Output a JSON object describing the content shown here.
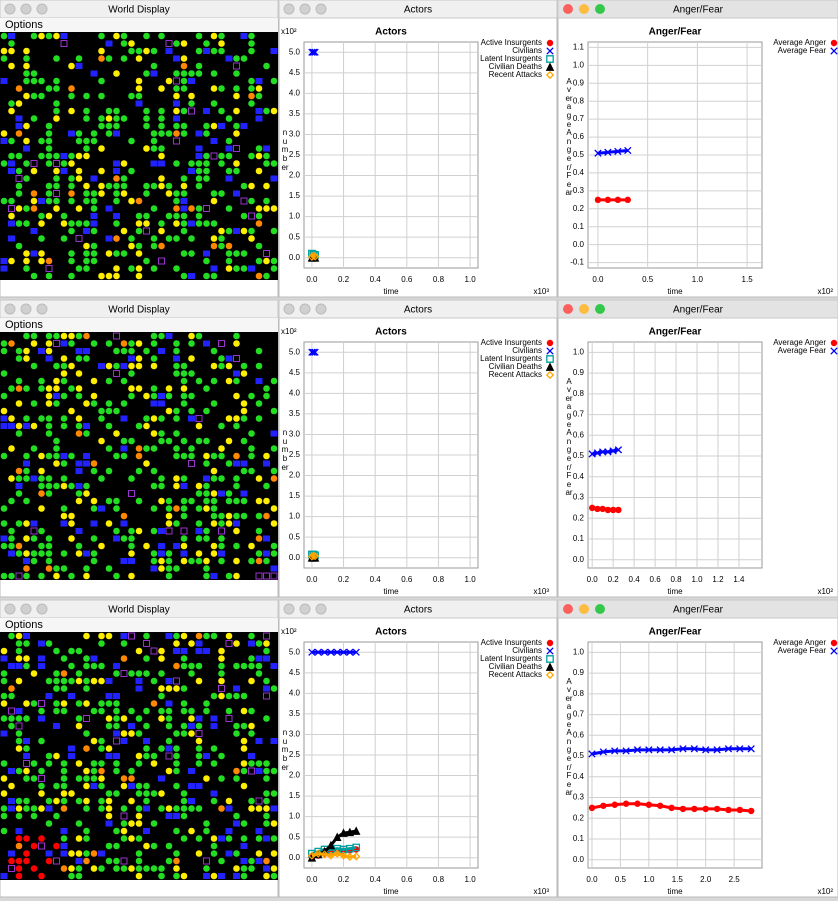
{
  "rows": [
    {
      "world_title": "World Display",
      "menu": "Options",
      "actors_title": "Actors",
      "anger_title": "Anger/Fear"
    },
    {
      "world_title": "World Display",
      "menu": "Options",
      "actors_title": "Actors",
      "anger_title": "Anger/Fear"
    },
    {
      "world_title": "World Display",
      "menu": "Options",
      "actors_title": "Actors",
      "anger_title": "Anger/Fear"
    }
  ],
  "chart_data": [
    {
      "type": "scatter",
      "title": "Actors",
      "xlabel": "time",
      "ylabel": "number",
      "x_exponent": "x10³",
      "y_exponent": "x10²",
      "grid": true,
      "xlim": [
        -0.05,
        1.05
      ],
      "ylim": [
        -0.25,
        5.25
      ],
      "xticks": [
        {
          "value": 0,
          "label": "0.0"
        },
        0.2,
        0.4,
        0.6,
        0.8,
        {
          "value": 1,
          "label": "1.0"
        }
      ],
      "yticks": [
        {
          "value": 0,
          "label": "0.0"
        },
        0.5,
        {
          "value": 1,
          "label": "1.0"
        },
        1.5,
        {
          "value": 2,
          "label": "2.0"
        },
        2.5,
        {
          "value": 3,
          "label": "3.0"
        },
        3.5,
        {
          "value": 4,
          "label": "4.0"
        },
        4.5,
        {
          "value": 5,
          "label": "5.0"
        }
      ],
      "series": [
        {
          "name": "Active Insurgents",
          "color": "#ff0000",
          "marker": "circle",
          "x": [
            0,
            0.01,
            0.02
          ],
          "values": [
            0,
            0,
            0
          ]
        },
        {
          "name": "Civilians",
          "color": "#0000ff",
          "marker": "x",
          "x": [
            0,
            0.01,
            0.02
          ],
          "values": [
            5,
            5,
            5
          ]
        },
        {
          "name": "Latent Insurgents",
          "color": "#00a0a0",
          "marker": "square",
          "x": [
            0,
            0.01,
            0.02
          ],
          "values": [
            0.1,
            0.08,
            0.07
          ]
        },
        {
          "name": "Civilian Deaths",
          "color": "#000000",
          "marker": "triangle",
          "x": [
            0,
            0.01,
            0.02
          ],
          "values": [
            0,
            0,
            0
          ]
        },
        {
          "name": "Recent Attacks",
          "color": "#ffa500",
          "marker": "diamond",
          "x": [
            0,
            0.01,
            0.02
          ],
          "values": [
            0.02,
            0.05,
            0.03
          ]
        }
      ]
    },
    {
      "type": "scatter",
      "title": "Anger/Fear",
      "xlabel": "time",
      "ylabel": "Average Anger/Fear",
      "x_exponent": "x10²",
      "grid": true,
      "xlim": [
        -0.1,
        1.65
      ],
      "ylim": [
        -0.13,
        1.13
      ],
      "xticks": [
        {
          "value": 0,
          "label": "0.0"
        },
        0.5,
        {
          "value": 1,
          "label": "1.0"
        },
        1.5
      ],
      "yticks": [
        -0.1,
        {
          "value": 0,
          "label": "0.0"
        },
        0.1,
        0.2,
        0.3,
        0.4,
        0.5,
        0.6,
        0.7,
        0.8,
        0.9,
        {
          "value": 1,
          "label": "1.0"
        },
        1.1
      ],
      "series": [
        {
          "name": "Average Anger",
          "color": "#ff0000",
          "marker": "circle",
          "x": [
            0,
            0.1,
            0.2,
            0.3
          ],
          "values": [
            0.25,
            0.25,
            0.25,
            0.25
          ]
        },
        {
          "name": "Average Fear",
          "color": "#0000ff",
          "marker": "x",
          "x": [
            0,
            0.1,
            0.2,
            0.3
          ],
          "values": [
            0.51,
            0.515,
            0.52,
            0.525
          ]
        }
      ]
    },
    {
      "type": "scatter",
      "title": "Actors",
      "xlabel": "time",
      "ylabel": "number",
      "x_exponent": "x10³",
      "y_exponent": "x10²",
      "grid": true,
      "xlim": [
        -0.05,
        1.05
      ],
      "ylim": [
        -0.25,
        5.25
      ],
      "xticks": [
        {
          "value": 0,
          "label": "0.0"
        },
        0.2,
        0.4,
        0.6,
        0.8,
        {
          "value": 1,
          "label": "1.0"
        }
      ],
      "yticks": [
        {
          "value": 0,
          "label": "0.0"
        },
        0.5,
        {
          "value": 1,
          "label": "1.0"
        },
        1.5,
        {
          "value": 2,
          "label": "2.0"
        },
        2.5,
        {
          "value": 3,
          "label": "3.0"
        },
        3.5,
        {
          "value": 4,
          "label": "4.0"
        },
        4.5,
        {
          "value": 5,
          "label": "5.0"
        }
      ],
      "series": [
        {
          "name": "Active Insurgents",
          "color": "#ff0000",
          "marker": "circle",
          "x": [
            0,
            0.01,
            0.02
          ],
          "values": [
            -0.02,
            0,
            0
          ]
        },
        {
          "name": "Civilians",
          "color": "#0000ff",
          "marker": "x",
          "x": [
            0,
            0.01,
            0.02
          ],
          "values": [
            5,
            5,
            5
          ]
        },
        {
          "name": "Latent Insurgents",
          "color": "#00a0a0",
          "marker": "square",
          "x": [
            0,
            0.01,
            0.02
          ],
          "values": [
            0.08,
            0.08,
            0.06
          ]
        },
        {
          "name": "Civilian Deaths",
          "color": "#000000",
          "marker": "triangle",
          "x": [
            0,
            0.01,
            0.02
          ],
          "values": [
            0,
            0,
            0
          ]
        },
        {
          "name": "Recent Attacks",
          "color": "#ffa500",
          "marker": "diamond",
          "x": [
            0,
            0.01,
            0.02
          ],
          "values": [
            0.03,
            0.05,
            0.04
          ]
        }
      ]
    },
    {
      "type": "scatter",
      "title": "Anger/Fear",
      "xlabel": "time",
      "ylabel": "Average Anger/Fear",
      "x_exponent": "x10²",
      "grid": true,
      "xlim": [
        -0.04,
        1.62
      ],
      "ylim": [
        -0.04,
        1.05
      ],
      "xticks": [
        {
          "value": 0,
          "label": "0.0"
        },
        0.2,
        0.4,
        0.6,
        0.8,
        {
          "value": 1,
          "label": "1.0"
        },
        1.2,
        1.4
      ],
      "yticks": [
        {
          "value": 0,
          "label": "0.0"
        },
        0.1,
        0.2,
        0.3,
        0.4,
        0.5,
        0.6,
        0.7,
        0.8,
        0.9,
        {
          "value": 1,
          "label": "1.0"
        }
      ],
      "series": [
        {
          "name": "Average Anger",
          "color": "#ff0000",
          "marker": "circle",
          "x": [
            0,
            0.05,
            0.1,
            0.15,
            0.2,
            0.25
          ],
          "values": [
            0.25,
            0.245,
            0.245,
            0.24,
            0.24,
            0.24
          ]
        },
        {
          "name": "Average Fear",
          "color": "#0000ff",
          "marker": "x",
          "x": [
            0,
            0.05,
            0.1,
            0.15,
            0.2,
            0.25
          ],
          "values": [
            0.51,
            0.515,
            0.52,
            0.52,
            0.525,
            0.53
          ]
        }
      ]
    },
    {
      "type": "scatter",
      "title": "Actors",
      "xlabel": "time",
      "ylabel": "number",
      "x_exponent": "x10³",
      "y_exponent": "x10²",
      "grid": true,
      "xlim": [
        -0.05,
        1.05
      ],
      "ylim": [
        -0.25,
        5.25
      ],
      "xticks": [
        {
          "value": 0,
          "label": "0.0"
        },
        0.2,
        0.4,
        0.6,
        0.8,
        {
          "value": 1,
          "label": "1.0"
        }
      ],
      "yticks": [
        {
          "value": 0,
          "label": "0.0"
        },
        0.5,
        {
          "value": 1,
          "label": "1.0"
        },
        1.5,
        {
          "value": 2,
          "label": "2.0"
        },
        2.5,
        {
          "value": 3,
          "label": "3.0"
        },
        3.5,
        {
          "value": 4,
          "label": "4.0"
        },
        4.5,
        {
          "value": 5,
          "label": "5.0"
        }
      ],
      "series": [
        {
          "name": "Active Insurgents",
          "color": "#ff0000",
          "marker": "circle",
          "x": [
            0,
            0.04,
            0.08,
            0.12,
            0.16,
            0.2,
            0.24,
            0.28
          ],
          "values": [
            0,
            0.05,
            0.1,
            0.12,
            0.15,
            0.17,
            0.18,
            0.2
          ]
        },
        {
          "name": "Civilians",
          "color": "#0000ff",
          "marker": "x",
          "x": [
            0,
            0.04,
            0.08,
            0.12,
            0.16,
            0.2,
            0.24,
            0.28
          ],
          "values": [
            5,
            5,
            5,
            5,
            5,
            5,
            5,
            5
          ]
        },
        {
          "name": "Latent Insurgents",
          "color": "#00a0a0",
          "marker": "square",
          "x": [
            0,
            0.04,
            0.08,
            0.12,
            0.16,
            0.2,
            0.24,
            0.28
          ],
          "values": [
            0.1,
            0.15,
            0.2,
            0.2,
            0.22,
            0.2,
            0.22,
            0.25
          ]
        },
        {
          "name": "Civilian Deaths",
          "color": "#000000",
          "marker": "triangle",
          "x": [
            0,
            0.04,
            0.08,
            0.12,
            0.16,
            0.2,
            0.24,
            0.28
          ],
          "values": [
            0,
            0.08,
            0.15,
            0.3,
            0.5,
            0.6,
            0.62,
            0.65
          ]
        },
        {
          "name": "Recent Attacks",
          "color": "#ffa500",
          "marker": "diamond",
          "x": [
            0,
            0.04,
            0.08,
            0.12,
            0.16,
            0.2,
            0.24,
            0.28
          ],
          "values": [
            0.05,
            0.1,
            0.08,
            0.05,
            0.1,
            0.05,
            0.02,
            0.03
          ]
        }
      ]
    },
    {
      "type": "scatter",
      "title": "Anger/Fear",
      "xlabel": "time",
      "ylabel": "Average Anger/Fear",
      "x_exponent": "x10²",
      "grid": true,
      "xlim": [
        -0.07,
        2.99
      ],
      "ylim": [
        -0.04,
        1.05
      ],
      "xticks": [
        {
          "value": 0,
          "label": "0.0"
        },
        0.5,
        {
          "value": 1,
          "label": "1.0"
        },
        1.5,
        {
          "value": 2,
          "label": "2.0"
        },
        2.5
      ],
      "yticks": [
        {
          "value": 0,
          "label": "0.0"
        },
        0.1,
        0.2,
        0.3,
        0.4,
        0.5,
        0.6,
        0.7,
        0.8,
        0.9,
        {
          "value": 1,
          "label": "1.0"
        }
      ],
      "series": [
        {
          "name": "Average Anger",
          "color": "#ff0000",
          "marker": "circle",
          "x": [
            0,
            0.2,
            0.4,
            0.6,
            0.8,
            1.0,
            1.2,
            1.4,
            1.6,
            1.8,
            2.0,
            2.2,
            2.4,
            2.6,
            2.8
          ],
          "values": [
            0.25,
            0.26,
            0.265,
            0.27,
            0.27,
            0.265,
            0.26,
            0.25,
            0.245,
            0.245,
            0.245,
            0.245,
            0.24,
            0.24,
            0.235
          ]
        },
        {
          "name": "Average Fear",
          "color": "#0000ff",
          "marker": "x",
          "x": [
            0,
            0.2,
            0.4,
            0.6,
            0.8,
            1.0,
            1.2,
            1.4,
            1.6,
            1.8,
            2.0,
            2.2,
            2.4,
            2.6,
            2.8
          ],
          "values": [
            0.51,
            0.52,
            0.525,
            0.525,
            0.53,
            0.53,
            0.53,
            0.53,
            0.535,
            0.535,
            0.53,
            0.53,
            0.535,
            0.535,
            0.535
          ]
        }
      ]
    }
  ]
}
